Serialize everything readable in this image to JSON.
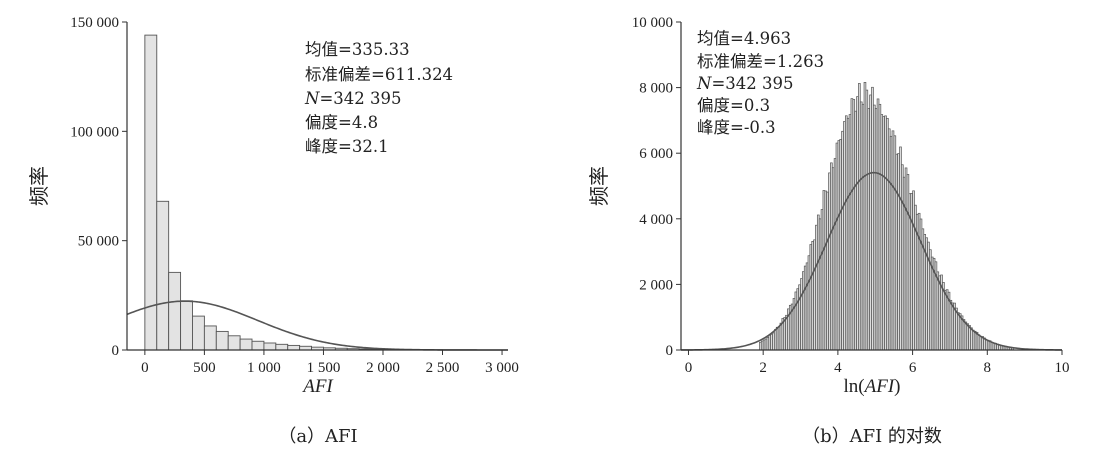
{
  "chart_data": [
    {
      "type": "bar",
      "caption": "（a）AFI",
      "xlabel": "AFI",
      "ylabel": "频率",
      "xlim": [
        -150,
        3050
      ],
      "ylim": [
        0,
        150000
      ],
      "xticks": [
        0,
        500,
        1000,
        1500,
        2000,
        2500,
        3000
      ],
      "xtick_labels": [
        "0",
        "500",
        "1 000",
        "1 500",
        "2 000",
        "2 500",
        "3 000"
      ],
      "yticks": [
        0,
        50000,
        100000,
        150000
      ],
      "ytick_labels": [
        "0",
        "50 000",
        "100 000",
        "150 000"
      ],
      "bin_start": 0,
      "bin_width": 100,
      "values": [
        144000,
        68000,
        35500,
        22500,
        15500,
        11000,
        8500,
        6500,
        5000,
        4000,
        3200,
        2600,
        2100,
        1700,
        1300,
        1000,
        800,
        600,
        450,
        350,
        280,
        220,
        170,
        130,
        100
      ],
      "normal_fit": {
        "mean": 335.33,
        "sd": 611.324,
        "n": 342395,
        "bin_width": 100
      },
      "stats": [
        {
          "label": "均值=",
          "value": "335.33"
        },
        {
          "label": "标准偏差=",
          "value": "611.324"
        },
        {
          "label": "N",
          "value": "=342 395"
        },
        {
          "label": "偏度=",
          "value": "4.8"
        },
        {
          "label": "峰度=",
          "value": "32.1"
        }
      ]
    },
    {
      "type": "bar",
      "caption": "（b）AFI 的对数",
      "xlabel_prefix": "ln(",
      "xlabel_var": "AFI",
      "xlabel_suffix": ")",
      "ylabel": "频率",
      "xlim": [
        -0.2,
        10
      ],
      "ylim": [
        0,
        10000
      ],
      "xticks": [
        0,
        2,
        4,
        6,
        8,
        10
      ],
      "xtick_labels": [
        "0",
        "2",
        "4",
        "6",
        "8",
        "10"
      ],
      "yticks": [
        0,
        2000,
        4000,
        6000,
        8000,
        10000
      ],
      "ytick_labels": [
        "0",
        "2 000",
        "4 000",
        "6 000",
        "8 000",
        "10 000"
      ],
      "bin_start": 1.9,
      "bin_width": 0.05,
      "num_bins": 136,
      "approx_shape": {
        "peak_x": 4.7,
        "peak_value": 7800,
        "sigma_left": 1.05,
        "sigma_right": 1.3
      },
      "normal_fit": {
        "mean": 4.963,
        "sd": 1.263,
        "n": 342395,
        "bin_width": 0.05
      },
      "stats": [
        {
          "label": "均值=",
          "value": "4.963"
        },
        {
          "label": "标准偏差=",
          "value": "1.263"
        },
        {
          "label": "N",
          "value": "=342 395"
        },
        {
          "label": "偏度=",
          "value": "0.3"
        },
        {
          "label": "峰度=",
          "value": "-0.3"
        }
      ]
    }
  ]
}
